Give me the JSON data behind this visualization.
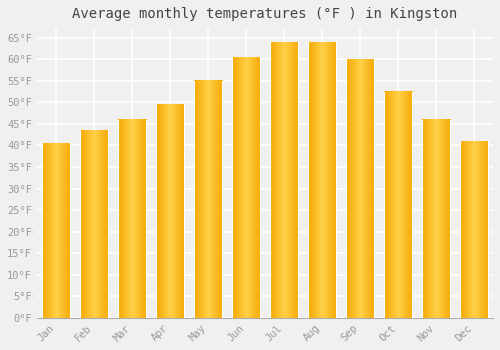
{
  "title": "Average monthly temperatures (°F ) in Kingston",
  "months": [
    "Jan",
    "Feb",
    "Mar",
    "Apr",
    "May",
    "Jun",
    "Jul",
    "Aug",
    "Sep",
    "Oct",
    "Nov",
    "Dec"
  ],
  "values": [
    40.5,
    43.5,
    46,
    49.5,
    55,
    60.5,
    64,
    64,
    60,
    52.5,
    46,
    41
  ],
  "bar_color_center": "#FFD04A",
  "bar_color_edge": "#F5A800",
  "ylim": [
    0,
    67
  ],
  "yticks": [
    0,
    5,
    10,
    15,
    20,
    25,
    30,
    35,
    40,
    45,
    50,
    55,
    60,
    65
  ],
  "ytick_labels": [
    "0°F",
    "5°F",
    "10°F",
    "15°F",
    "20°F",
    "25°F",
    "30°F",
    "35°F",
    "40°F",
    "45°F",
    "50°F",
    "55°F",
    "60°F",
    "65°F"
  ],
  "background_color": "#f0f0f0",
  "grid_color": "#ffffff",
  "title_fontsize": 10,
  "tick_fontsize": 7.5,
  "font_family": "monospace",
  "tick_color": "#999999"
}
